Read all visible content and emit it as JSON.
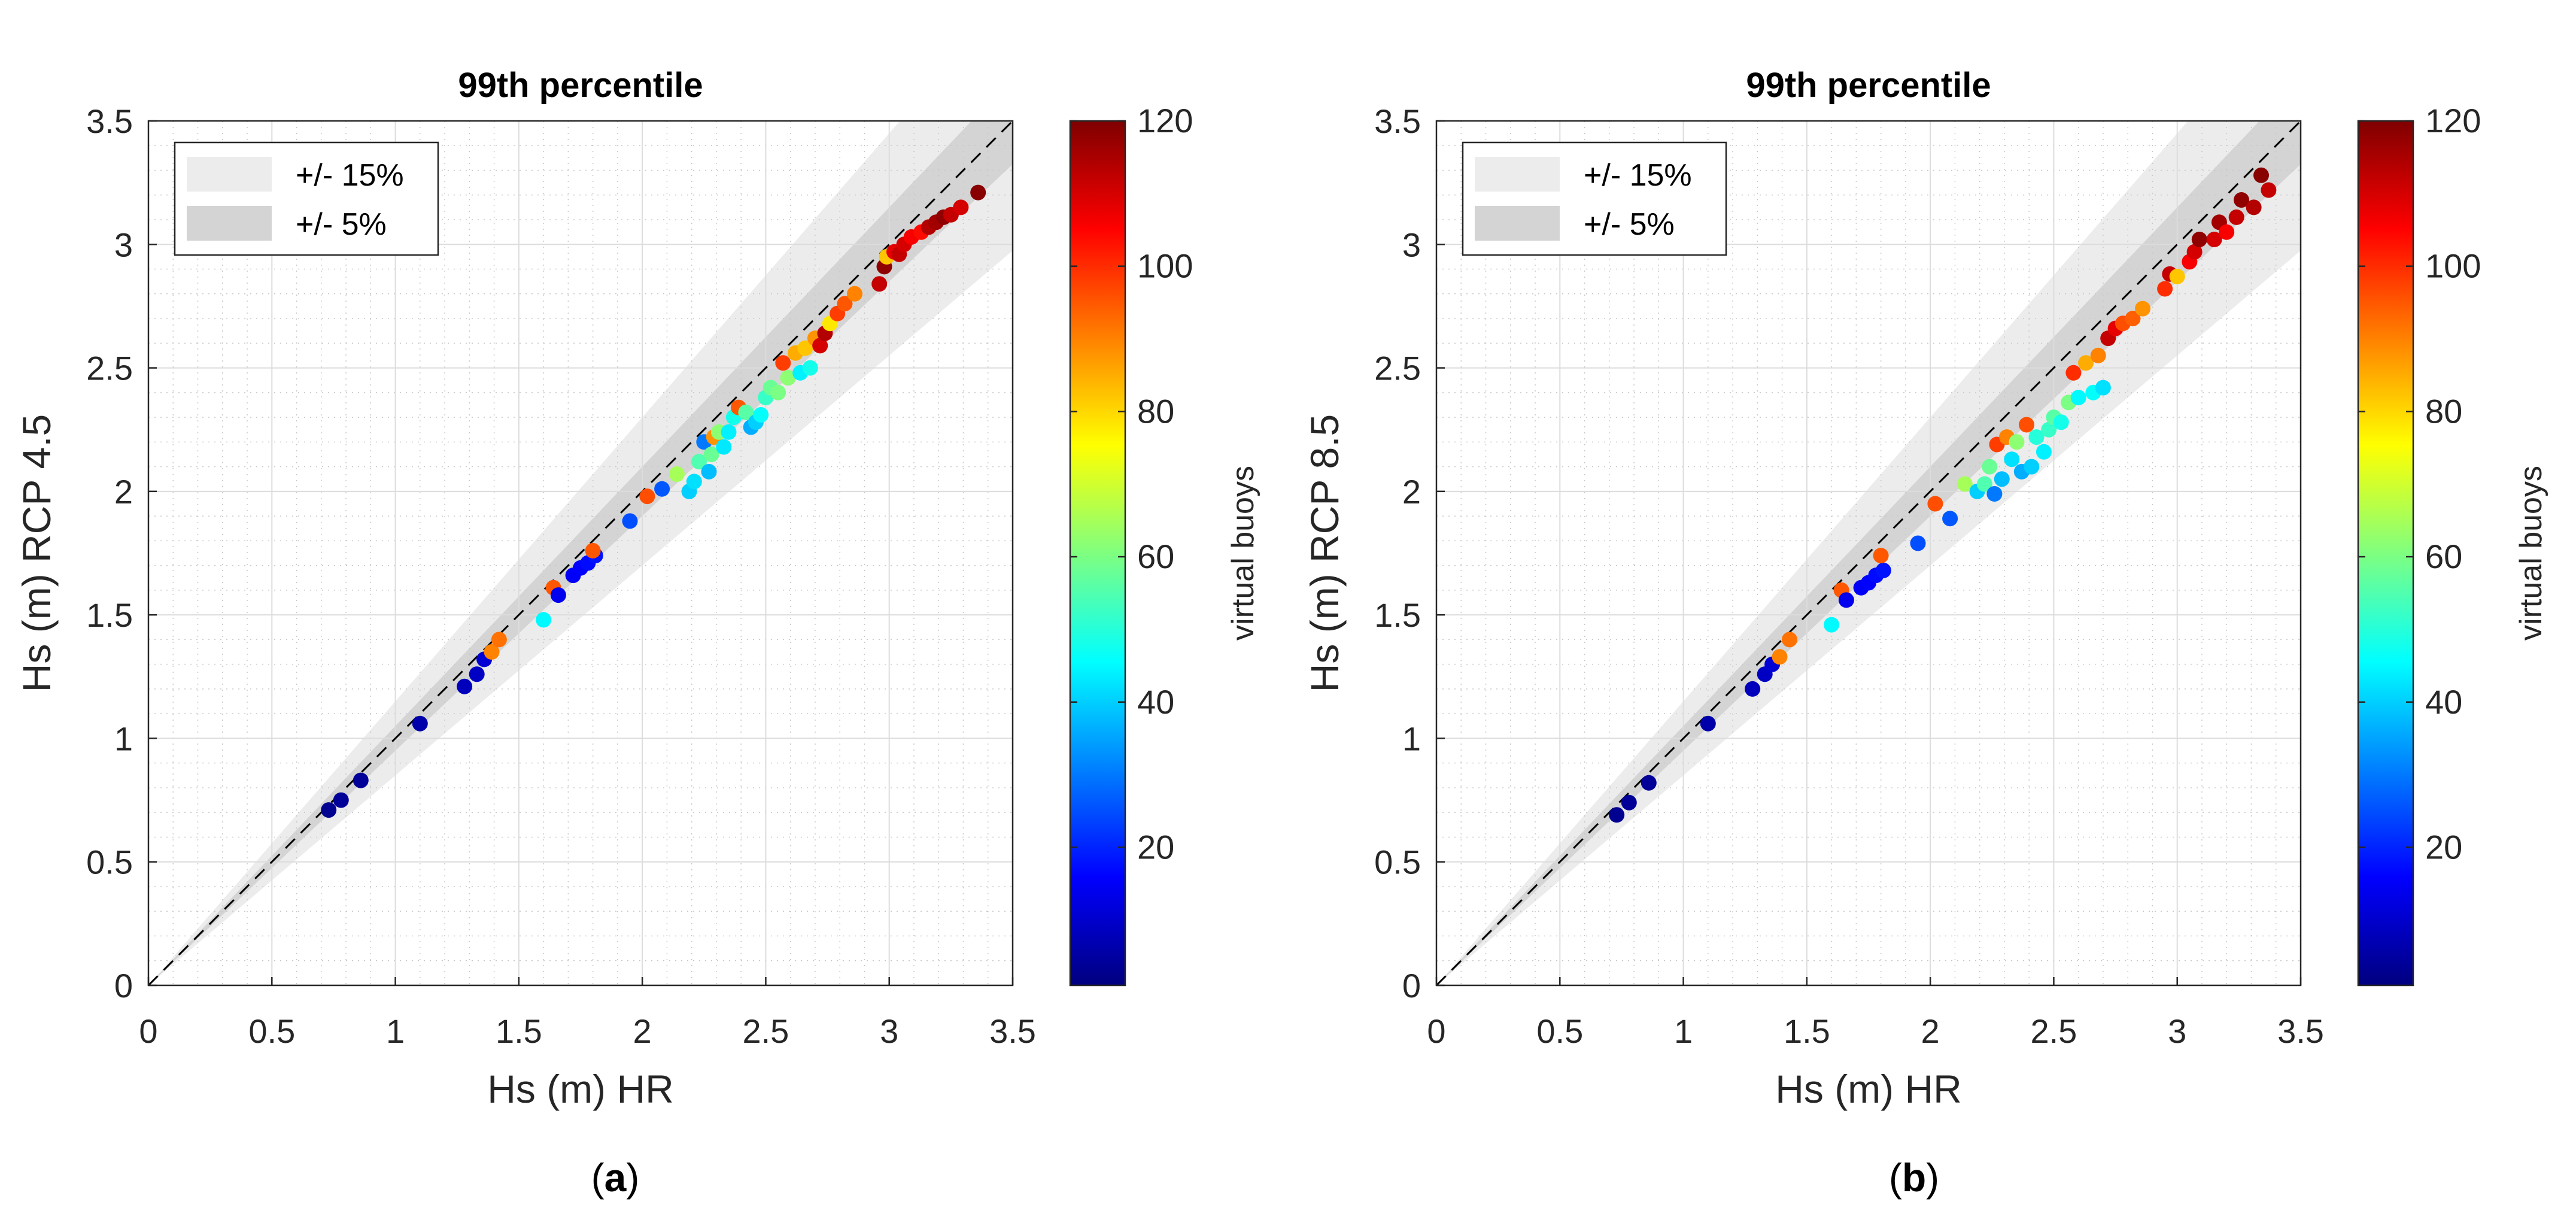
{
  "chart_data": [
    {
      "type": "scatter",
      "panel_label": "a",
      "title": "99th percentile",
      "xlabel": "Hs (m) HR",
      "ylabel": "Hs (m) RCP 4.5",
      "xlim": [
        0,
        3.5
      ],
      "ylim": [
        0,
        3.5
      ],
      "xticks": [
        "0",
        "0.5",
        "1",
        "1.5",
        "2",
        "2.5",
        "3",
        "3.5"
      ],
      "yticks": [
        "0",
        "0.5",
        "1",
        "1.5",
        "2",
        "2.5",
        "3",
        "3.5"
      ],
      "grid": true,
      "legend": {
        "placement": "top-left",
        "entries": [
          "+/- 15%",
          "+/- 5%"
        ]
      },
      "reference_line": "y = x (dashed)",
      "bands": [
        {
          "label": "+/- 15%",
          "factor": 0.15,
          "color": "#ececec"
        },
        {
          "label": "+/- 5%",
          "factor": 0.05,
          "color": "#d4d4d4"
        }
      ],
      "colorbar": {
        "label": "virtual buoys",
        "min": 1,
        "max": 120,
        "ticks": [
          "20",
          "40",
          "60",
          "80",
          "100",
          "120"
        ]
      },
      "points": [
        [
          0.73,
          0.71,
          3
        ],
        [
          0.78,
          0.75,
          4
        ],
        [
          0.86,
          0.83,
          4
        ],
        [
          1.1,
          1.06,
          6
        ],
        [
          1.28,
          1.21,
          8
        ],
        [
          1.33,
          1.26,
          9
        ],
        [
          1.36,
          1.32,
          11
        ],
        [
          1.39,
          1.35,
          90
        ],
        [
          1.42,
          1.4,
          92
        ],
        [
          1.6,
          1.48,
          45
        ],
        [
          1.64,
          1.61,
          95
        ],
        [
          1.66,
          1.58,
          14
        ],
        [
          1.72,
          1.66,
          15
        ],
        [
          1.75,
          1.69,
          16
        ],
        [
          1.78,
          1.71,
          17
        ],
        [
          1.81,
          1.74,
          18
        ],
        [
          1.8,
          1.76,
          95
        ],
        [
          1.95,
          1.88,
          25
        ],
        [
          2.02,
          1.98,
          96
        ],
        [
          2.08,
          2.01,
          26
        ],
        [
          2.14,
          2.07,
          65
        ],
        [
          2.19,
          2.0,
          40
        ],
        [
          2.21,
          2.04,
          42
        ],
        [
          2.23,
          2.12,
          55
        ],
        [
          2.25,
          2.2,
          30
        ],
        [
          2.27,
          2.08,
          38
        ],
        [
          2.28,
          2.15,
          58
        ],
        [
          2.29,
          2.22,
          88
        ],
        [
          2.31,
          2.24,
          62
        ],
        [
          2.33,
          2.18,
          43
        ],
        [
          2.35,
          2.24,
          44
        ],
        [
          2.37,
          2.3,
          48
        ],
        [
          2.39,
          2.34,
          95
        ],
        [
          2.42,
          2.32,
          56
        ],
        [
          2.44,
          2.26,
          36
        ],
        [
          2.46,
          2.28,
          40
        ],
        [
          2.48,
          2.31,
          46
        ],
        [
          2.5,
          2.38,
          52
        ],
        [
          2.52,
          2.42,
          58
        ],
        [
          2.55,
          2.4,
          60
        ],
        [
          2.57,
          2.52,
          98
        ],
        [
          2.59,
          2.46,
          62
        ],
        [
          2.62,
          2.56,
          85
        ],
        [
          2.64,
          2.48,
          44
        ],
        [
          2.66,
          2.58,
          82
        ],
        [
          2.68,
          2.5,
          48
        ],
        [
          2.7,
          2.62,
          88
        ],
        [
          2.72,
          2.59,
          110
        ],
        [
          2.74,
          2.64,
          114
        ],
        [
          2.76,
          2.68,
          78
        ],
        [
          2.79,
          2.72,
          98
        ],
        [
          2.82,
          2.76,
          95
        ],
        [
          2.86,
          2.8,
          90
        ],
        [
          2.96,
          2.84,
          112
        ],
        [
          2.98,
          2.91,
          118
        ],
        [
          2.99,
          2.95,
          82
        ],
        [
          3.02,
          2.97,
          108
        ],
        [
          3.04,
          2.96,
          112
        ],
        [
          3.06,
          3.0,
          110
        ],
        [
          3.09,
          3.03,
          106
        ],
        [
          3.13,
          3.05,
          104
        ],
        [
          3.16,
          3.07,
          114
        ],
        [
          3.19,
          3.09,
          116
        ],
        [
          3.22,
          3.11,
          118
        ],
        [
          3.25,
          3.12,
          112
        ],
        [
          3.29,
          3.15,
          110
        ],
        [
          3.36,
          3.21,
          119
        ]
      ]
    },
    {
      "type": "scatter",
      "panel_label": "b",
      "title": "99th percentile",
      "xlabel": "Hs (m) HR",
      "ylabel": "Hs (m) RCP 8.5",
      "xlim": [
        0,
        3.5
      ],
      "ylim": [
        0,
        3.5
      ],
      "xticks": [
        "0",
        "0.5",
        "1",
        "1.5",
        "2",
        "2.5",
        "3",
        "3.5"
      ],
      "yticks": [
        "0",
        "0.5",
        "1",
        "1.5",
        "2",
        "2.5",
        "3",
        "3.5"
      ],
      "grid": true,
      "legend": {
        "placement": "top-left",
        "entries": [
          "+/- 15%",
          "+/- 5%"
        ]
      },
      "reference_line": "y = x (dashed)",
      "bands": [
        {
          "label": "+/- 15%",
          "factor": 0.15,
          "color": "#ececec"
        },
        {
          "label": "+/- 5%",
          "factor": 0.05,
          "color": "#d4d4d4"
        }
      ],
      "colorbar": {
        "label": "virtual buoys",
        "min": 1,
        "max": 120,
        "ticks": [
          "20",
          "40",
          "60",
          "80",
          "100",
          "120"
        ]
      },
      "points": [
        [
          0.73,
          0.69,
          3
        ],
        [
          0.78,
          0.74,
          4
        ],
        [
          0.86,
          0.82,
          4
        ],
        [
          1.1,
          1.06,
          6
        ],
        [
          1.28,
          1.2,
          8
        ],
        [
          1.33,
          1.26,
          9
        ],
        [
          1.36,
          1.3,
          11
        ],
        [
          1.39,
          1.33,
          90
        ],
        [
          1.43,
          1.4,
          92
        ],
        [
          1.6,
          1.46,
          45
        ],
        [
          1.64,
          1.6,
          95
        ],
        [
          1.66,
          1.56,
          14
        ],
        [
          1.72,
          1.61,
          15
        ],
        [
          1.75,
          1.63,
          16
        ],
        [
          1.78,
          1.66,
          17
        ],
        [
          1.81,
          1.68,
          18
        ],
        [
          1.8,
          1.74,
          95
        ],
        [
          1.95,
          1.79,
          25
        ],
        [
          2.02,
          1.95,
          96
        ],
        [
          2.08,
          1.89,
          26
        ],
        [
          2.14,
          2.03,
          65
        ],
        [
          2.19,
          2.0,
          40
        ],
        [
          2.22,
          2.03,
          55
        ],
        [
          2.24,
          2.1,
          58
        ],
        [
          2.26,
          1.99,
          30
        ],
        [
          2.27,
          2.19,
          98
        ],
        [
          2.29,
          2.05,
          38
        ],
        [
          2.31,
          2.22,
          90
        ],
        [
          2.33,
          2.13,
          42
        ],
        [
          2.35,
          2.2,
          62
        ],
        [
          2.37,
          2.08,
          36
        ],
        [
          2.39,
          2.27,
          96
        ],
        [
          2.41,
          2.1,
          40
        ],
        [
          2.43,
          2.22,
          50
        ],
        [
          2.46,
          2.16,
          44
        ],
        [
          2.48,
          2.25,
          52
        ],
        [
          2.5,
          2.3,
          56
        ],
        [
          2.53,
          2.28,
          48
        ],
        [
          2.56,
          2.36,
          60
        ],
        [
          2.58,
          2.48,
          100
        ],
        [
          2.6,
          2.38,
          45
        ],
        [
          2.63,
          2.52,
          85
        ],
        [
          2.66,
          2.4,
          46
        ],
        [
          2.68,
          2.55,
          90
        ],
        [
          2.7,
          2.42,
          42
        ],
        [
          2.72,
          2.62,
          112
        ],
        [
          2.75,
          2.66,
          108
        ],
        [
          2.78,
          2.68,
          96
        ],
        [
          2.82,
          2.7,
          94
        ],
        [
          2.86,
          2.74,
          88
        ],
        [
          2.95,
          2.82,
          100
        ],
        [
          2.97,
          2.88,
          112
        ],
        [
          3.0,
          2.87,
          82
        ],
        [
          3.05,
          2.93,
          106
        ],
        [
          3.07,
          2.97,
          110
        ],
        [
          3.09,
          3.02,
          118
        ],
        [
          3.15,
          3.02,
          110
        ],
        [
          3.17,
          3.09,
          116
        ],
        [
          3.2,
          3.05,
          106
        ],
        [
          3.24,
          3.11,
          112
        ],
        [
          3.26,
          3.18,
          118
        ],
        [
          3.31,
          3.15,
          114
        ],
        [
          3.34,
          3.28,
          119
        ],
        [
          3.37,
          3.22,
          112
        ]
      ]
    }
  ]
}
